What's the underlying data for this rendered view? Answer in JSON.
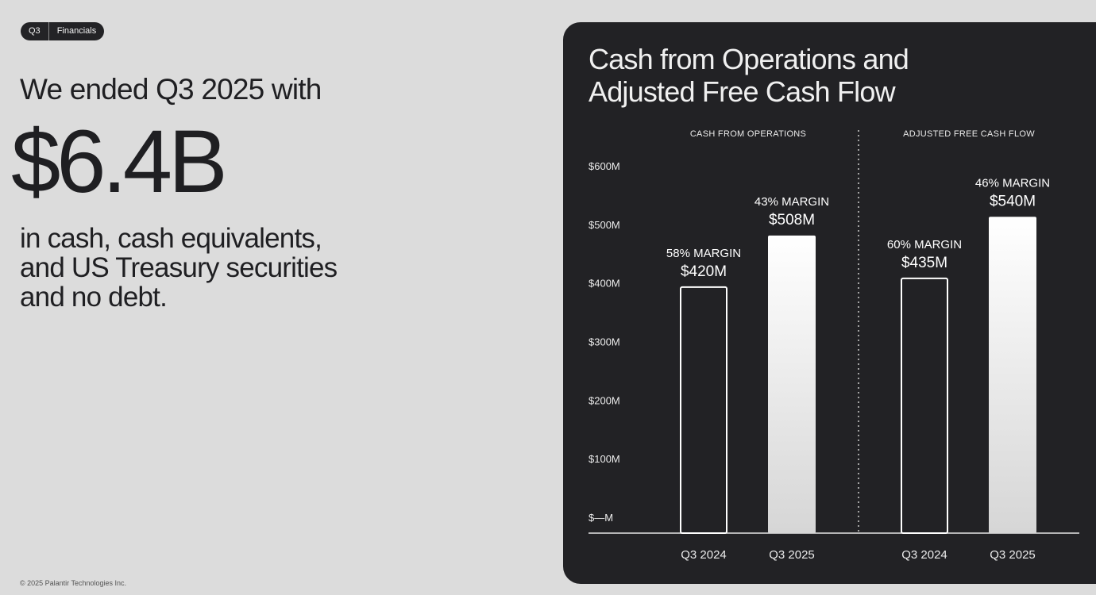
{
  "tag": {
    "quarter": "Q3",
    "section": "Financials"
  },
  "left": {
    "headline": "We ended Q3 2025 with",
    "big_number": "$6.4B",
    "desc_lines": [
      "in cash, cash equivalents,",
      "and US Treasury securities",
      "and no debt."
    ]
  },
  "footer": "© 2025 Palantir Technologies Inc.",
  "chart_title_lines": [
    "Cash from Operations and",
    "Adjusted Free Cash Flow"
  ],
  "colors": {
    "background": "#dcdcdc",
    "panel": "#222225",
    "bar_fill": "#ffffff",
    "text_dark": "#1f1f22"
  },
  "chart_data": {
    "type": "bar",
    "ylim": [
      0,
      600
    ],
    "y_ticks": [
      {
        "value": 600,
        "label": "$600M"
      },
      {
        "value": 500,
        "label": "$500M"
      },
      {
        "value": 400,
        "label": "$400M"
      },
      {
        "value": 300,
        "label": "$300M"
      },
      {
        "value": 200,
        "label": "$200M"
      },
      {
        "value": 100,
        "label": "$100M"
      },
      {
        "value": 0,
        "label": "$—M"
      }
    ],
    "grid": false,
    "panels": [
      {
        "name": "CASH FROM OPERATIONS",
        "bars": [
          {
            "category": "Q3 2024",
            "value": 420,
            "value_label": "$420M",
            "margin_label": "58% MARGIN",
            "style": "outline"
          },
          {
            "category": "Q3 2025",
            "value": 508,
            "value_label": "$508M",
            "margin_label": "43% MARGIN",
            "style": "filled"
          }
        ]
      },
      {
        "name": "ADJUSTED FREE CASH FLOW",
        "bars": [
          {
            "category": "Q3 2024",
            "value": 435,
            "value_label": "$435M",
            "margin_label": "60% MARGIN",
            "style": "outline"
          },
          {
            "category": "Q3 2025",
            "value": 540,
            "value_label": "$540M",
            "margin_label": "46% MARGIN",
            "style": "filled"
          }
        ]
      }
    ]
  }
}
